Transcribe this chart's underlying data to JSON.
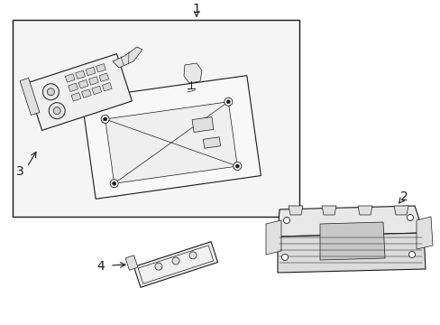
{
  "background_color": "#ffffff",
  "line_color": "#1a1a1a",
  "fill_box": "#f5f5f5",
  "fill_white": "#ffffff",
  "fill_light": "#eeeeee",
  "fill_gray": "#d8d8d8",
  "label_1": "1",
  "label_2": "2",
  "label_3": "3",
  "label_4": "4",
  "label_fontsize": 10,
  "fig_width": 4.89,
  "fig_height": 3.6,
  "dpi": 100
}
